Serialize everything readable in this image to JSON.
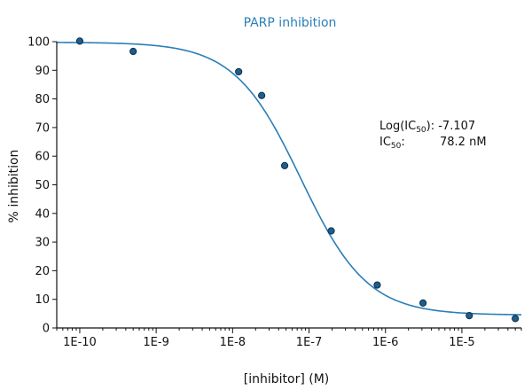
{
  "chart_data": {
    "type": "scatter",
    "title": "PARP inhibition",
    "xlabel": "[inhibitor] (M)",
    "ylabel": "% inhibition",
    "x_scale": "log",
    "xlim": [
      5e-11,
      6e-05
    ],
    "ylim": [
      0,
      100
    ],
    "x_ticks": [
      1e-10,
      1e-09,
      1e-08,
      1e-07,
      1e-06,
      1e-05
    ],
    "x_tick_labels": [
      "1E-10",
      "1E-9",
      "1E-8",
      "1E-7",
      "1E-6",
      "1E-5"
    ],
    "y_ticks": [
      0,
      10,
      20,
      30,
      40,
      50,
      60,
      70,
      80,
      90,
      100
    ],
    "y_tick_labels": [
      "0",
      "10",
      "20",
      "30",
      "40",
      "50",
      "60",
      "70",
      "80",
      "90",
      "100"
    ],
    "grid": false,
    "legend": "none",
    "series": [
      {
        "x": [
          1e-10,
          5e-10,
          1.2e-08,
          2.4e-08,
          4.8e-08,
          1.95e-07,
          7.8e-07,
          3.1e-06,
          1.25e-05,
          5e-05
        ],
        "y": [
          100.2,
          96.6,
          89.5,
          81.2,
          56.7,
          33.9,
          15.0,
          8.7,
          4.3,
          3.3
        ],
        "marker_color": "#1f5d8c"
      }
    ],
    "fit_curve": {
      "model": "4PL",
      "top": 99.8,
      "bottom": 4.5,
      "log_ic50": -7.107,
      "hill_slope": 1.0,
      "color": "#2a7fb8"
    },
    "annotation": {
      "log_ic50_label": "Log(IC",
      "log_ic50_sub": "50",
      "log_ic50_value": "): -7.107",
      "ic50_label": "IC",
      "ic50_sub": "50",
      "ic50_colon": ":",
      "ic50_value": "78.2 nM"
    }
  }
}
